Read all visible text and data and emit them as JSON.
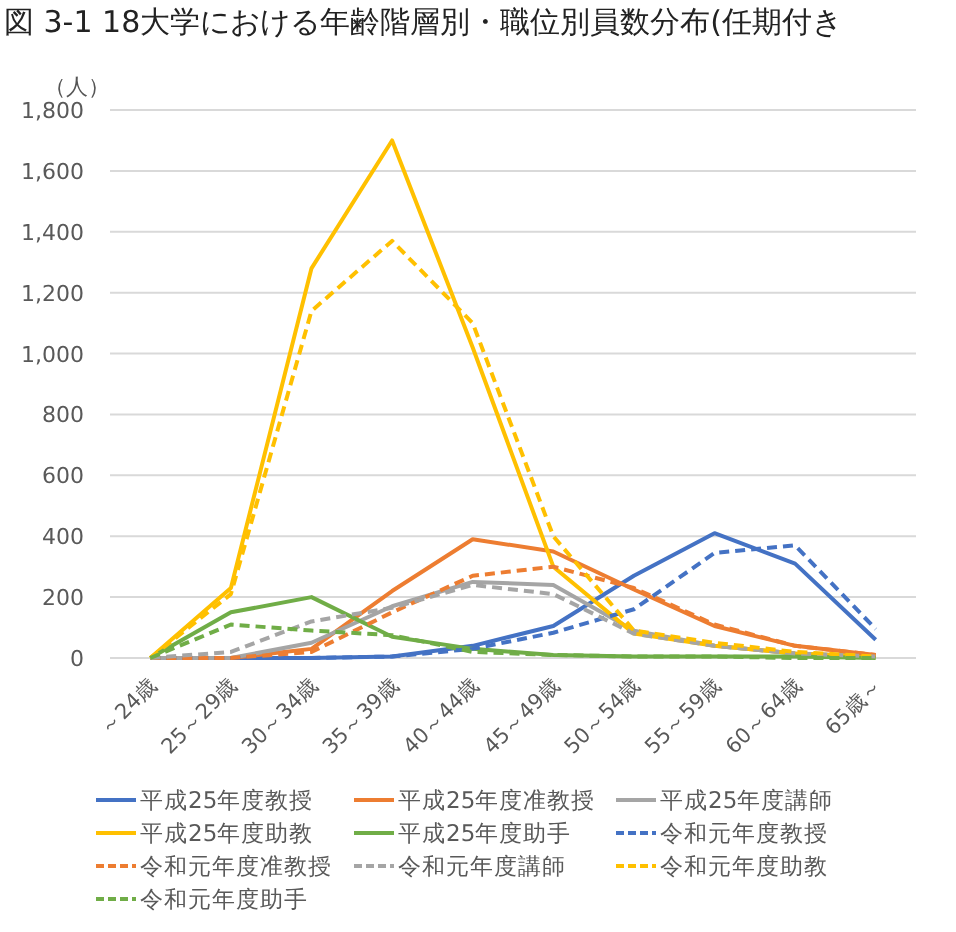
{
  "chart_data": {
    "type": "line",
    "title": "図 3-1 18大学における年齢階層別・職位別員数分布(任期付き",
    "ylabel": "（人）",
    "categories": [
      "～24歳",
      "25～29歳",
      "30～34歳",
      "35～39歳",
      "40～44歳",
      "45～49歳",
      "50～54歳",
      "55～59歳",
      "60～64歳",
      "65歳～"
    ],
    "ylim": [
      0,
      1800
    ],
    "yticks": [
      0,
      200,
      400,
      600,
      800,
      {
        "value": 1000,
        "label": "1,000"
      },
      {
        "value": 1200,
        "label": "1,200"
      },
      {
        "value": 1400,
        "label": "1,400"
      },
      {
        "value": 1600,
        "label": "1,600"
      },
      {
        "value": 1800,
        "label": "1,800"
      }
    ],
    "grid": "y",
    "legend": "bottom",
    "series": [
      {
        "name": "平成25年度教授",
        "color": "#4472c4",
        "line_style": "solid",
        "values": [
          0,
          0,
          0,
          5,
          40,
          105,
          270,
          410,
          310,
          60
        ]
      },
      {
        "name": "平成25年度准教授",
        "color": "#ed7d31",
        "line_style": "solid",
        "values": [
          0,
          0,
          30,
          220,
          390,
          350,
          225,
          105,
          40,
          10
        ]
      },
      {
        "name": "平成25年度講師",
        "color": "#a5a5a5",
        "line_style": "solid",
        "values": [
          0,
          0,
          50,
          170,
          250,
          240,
          90,
          40,
          15,
          5
        ]
      },
      {
        "name": "平成25年度助教",
        "color": "#ffc000",
        "line_style": "solid",
        "values": [
          0,
          230,
          1280,
          1700,
          1020,
          300,
          80,
          40,
          15,
          5
        ]
      },
      {
        "name": "平成25年度助手",
        "color": "#70ad47",
        "line_style": "solid",
        "values": [
          0,
          150,
          200,
          70,
          30,
          10,
          5,
          5,
          5,
          0
        ]
      },
      {
        "name": "令和元年度教授",
        "color": "#4472c4",
        "line_style": "dashed",
        "values": [
          0,
          0,
          0,
          5,
          30,
          83,
          160,
          345,
          370,
          95
        ]
      },
      {
        "name": "令和元年度准教授",
        "color": "#ed7d31",
        "line_style": "dashed",
        "values": [
          0,
          0,
          20,
          150,
          270,
          300,
          230,
          110,
          40,
          10
        ]
      },
      {
        "name": "令和元年度講師",
        "color": "#a5a5a5",
        "line_style": "dashed",
        "values": [
          0,
          20,
          120,
          165,
          240,
          210,
          80,
          40,
          15,
          5
        ]
      },
      {
        "name": "令和元年度助教",
        "color": "#ffc000",
        "line_style": "dashed",
        "values": [
          0,
          210,
          1140,
          1370,
          1100,
          400,
          90,
          50,
          20,
          5
        ]
      },
      {
        "name": "令和元年度助手",
        "color": "#70ad47",
        "line_style": "dashed",
        "values": [
          0,
          110,
          90,
          75,
          20,
          10,
          5,
          5,
          0,
          0
        ]
      }
    ]
  }
}
